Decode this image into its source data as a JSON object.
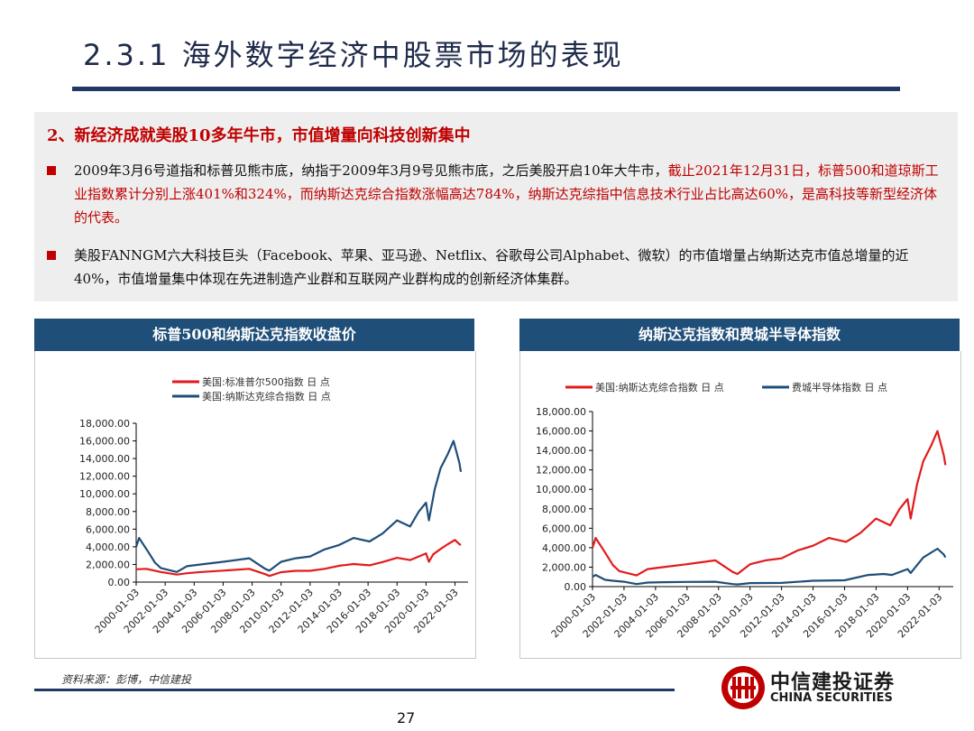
{
  "title": "2.3.1 海外数字经济中股票市场的表现",
  "summary": {
    "heading": "2、新经济成就美股10多年牛市，市值增量向科技创新集中",
    "bullet1_black": "2009年3月6号道指和标普见熊市底，纳指于2009年3月9号见熊市底，之后美股开启10年大牛市，",
    "bullet1_red": "截止2021年12月31日，标普500和道琼斯工业指数累计分别上涨401%和324%，而纳斯达克综合指数涨幅高达784%，纳斯达克综指中信息技术行业占比高达60%，是高科技等新型经济体的代表。",
    "bullet2": "美股FANNGM六大科技巨头（Facebook、苹果、亚马逊、Netflix、谷歌母公司Alphabet、微软）的市值增量占纳斯达克市值总增量的近40%，市值增量集中体现在先进制造产业群和互联网产业群构成的创新经济体集群。"
  },
  "chart_data": [
    {
      "type": "line",
      "header": "标普500和纳斯达克指数收盘价",
      "title": "",
      "xlabel": "",
      "ylabel": "",
      "x_ticks": [
        "2000-01-03",
        "2002-01-03",
        "2004-01-03",
        "2006-01-03",
        "2008-01-03",
        "2010-01-03",
        "2012-01-03",
        "2014-01-03",
        "2016-01-03",
        "2018-01-03",
        "2020-01-03",
        "2022-01-03"
      ],
      "y_ticks": [
        "0.00",
        "2,000.00",
        "4,000.00",
        "6,000.00",
        "8,000.00",
        "10,000.00",
        "12,000.00",
        "14,000.00",
        "16,000.00",
        "18,000.00"
      ],
      "ylim": [
        0,
        18000
      ],
      "legend_placement": "top",
      "series": [
        {
          "name": "美国:标准普尔500指数 日 点",
          "color": "#e31a1c",
          "x": [
            2000.0,
            2000.7,
            2001.7,
            2002.8,
            2003.5,
            2004.5,
            2006.0,
            2007.8,
            2008.9,
            2009.2,
            2010.0,
            2011.0,
            2012.0,
            2013.0,
            2014.0,
            2015.0,
            2016.1,
            2017.0,
            2018.0,
            2018.9,
            2019.5,
            2020.0,
            2020.2,
            2020.5,
            2021.0,
            2021.5,
            2022.0,
            2022.3,
            2022.4
          ],
          "y": [
            1450,
            1500,
            1150,
            850,
            1000,
            1150,
            1300,
            1500,
            900,
            700,
            1130,
            1280,
            1280,
            1500,
            1850,
            2050,
            1900,
            2270,
            2750,
            2500,
            2900,
            3250,
            2300,
            3150,
            3750,
            4300,
            4780,
            4300,
            4200
          ]
        },
        {
          "name": "美国:纳斯达克综合指数 日 点",
          "color": "#1f4e79",
          "x": [
            2000.0,
            2000.2,
            2000.8,
            2001.3,
            2001.7,
            2002.8,
            2003.5,
            2004.5,
            2006.0,
            2007.8,
            2008.9,
            2009.2,
            2010.0,
            2011.0,
            2012.0,
            2013.0,
            2014.0,
            2015.0,
            2016.1,
            2017.0,
            2018.0,
            2018.9,
            2019.5,
            2020.0,
            2020.2,
            2020.6,
            2021.0,
            2021.5,
            2021.9,
            2022.3,
            2022.4
          ],
          "y": [
            4000,
            5000,
            3500,
            2200,
            1600,
            1150,
            1800,
            2000,
            2300,
            2700,
            1500,
            1300,
            2300,
            2700,
            2900,
            3700,
            4200,
            5000,
            4600,
            5500,
            7000,
            6300,
            8000,
            9000,
            7000,
            10500,
            12900,
            14500,
            16000,
            13500,
            12500
          ]
        }
      ]
    },
    {
      "type": "line",
      "header": "纳斯达克指数和费城半导体指数",
      "title": "",
      "xlabel": "",
      "ylabel": "",
      "x_ticks": [
        "2000-01-03",
        "2002-01-03",
        "2004-01-03",
        "2006-01-03",
        "2008-01-03",
        "2010-01-03",
        "2012-01-03",
        "2014-01-03",
        "2016-01-03",
        "2018-01-03",
        "2020-01-03",
        "2022-01-03"
      ],
      "y_ticks": [
        "0.00",
        "2,000.00",
        "4,000.00",
        "6,000.00",
        "8,000.00",
        "10,000.00",
        "12,000.00",
        "14,000.00",
        "16,000.00",
        "18,000.00"
      ],
      "ylim": [
        0,
        18000
      ],
      "legend_placement": "top",
      "series": [
        {
          "name": "美国:纳斯达克综合指数 日 点",
          "color": "#e31a1c",
          "x": [
            2000.0,
            2000.2,
            2000.8,
            2001.3,
            2001.7,
            2002.8,
            2003.5,
            2004.5,
            2006.0,
            2007.8,
            2008.9,
            2009.2,
            2010.0,
            2011.0,
            2012.0,
            2013.0,
            2014.0,
            2015.0,
            2016.1,
            2017.0,
            2018.0,
            2018.9,
            2019.5,
            2020.0,
            2020.2,
            2020.6,
            2021.0,
            2021.5,
            2021.9,
            2022.3,
            2022.4
          ],
          "y": [
            4000,
            5000,
            3500,
            2200,
            1600,
            1150,
            1800,
            2000,
            2300,
            2700,
            1500,
            1300,
            2300,
            2700,
            2900,
            3700,
            4200,
            5000,
            4600,
            5500,
            7000,
            6300,
            8000,
            9000,
            7000,
            10500,
            12900,
            14500,
            16000,
            13500,
            12500
          ]
        },
        {
          "name": "费城半导体指数 日 点",
          "color": "#1f4e79",
          "x": [
            2000.0,
            2000.2,
            2000.8,
            2001.3,
            2002.0,
            2002.8,
            2003.5,
            2004.5,
            2006.0,
            2007.8,
            2008.9,
            2009.2,
            2010.0,
            2012.0,
            2014.0,
            2016.0,
            2017.5,
            2018.5,
            2019.0,
            2020.0,
            2020.2,
            2021.0,
            2021.9,
            2022.3,
            2022.4
          ],
          "y": [
            1000,
            1200,
            700,
            600,
            500,
            260,
            420,
            450,
            480,
            500,
            260,
            220,
            360,
            380,
            600,
            650,
            1200,
            1300,
            1200,
            1800,
            1400,
            3000,
            3900,
            3300,
            3000
          ]
        }
      ]
    }
  ],
  "source": "资料来源：彭博，中信建投",
  "page_number": "27",
  "logo": {
    "cn": "中信建投证券",
    "en": "CHINA SECURITIES"
  }
}
